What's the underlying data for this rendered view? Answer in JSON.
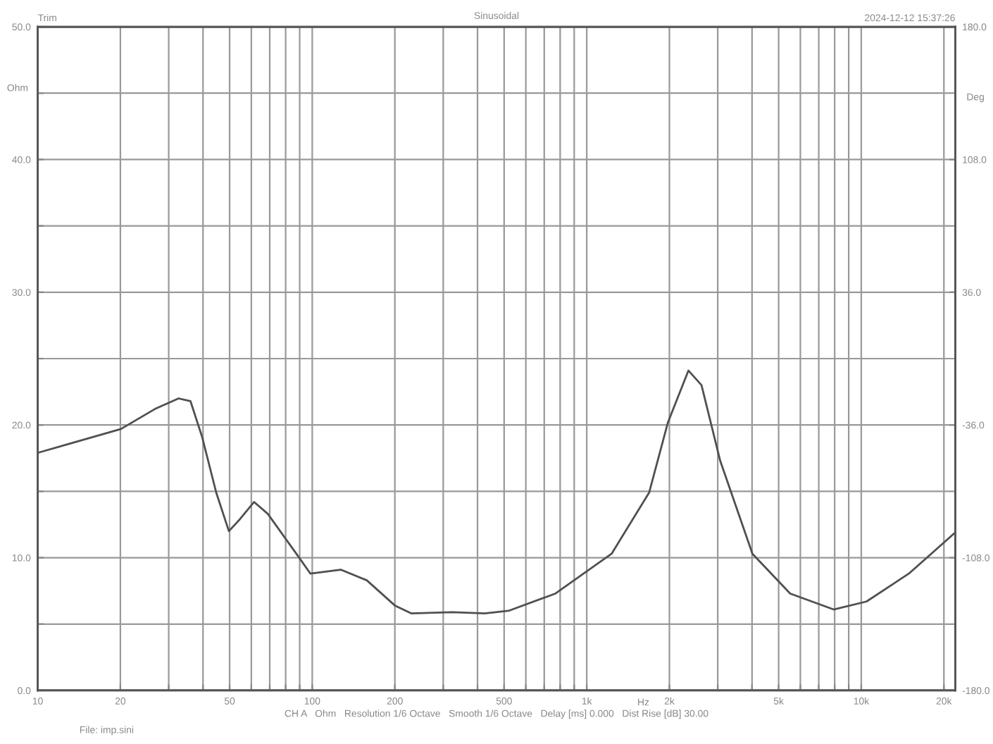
{
  "chart_data": {
    "type": "line",
    "title": "Sinusoidal",
    "xlabel": "Hz",
    "ylabel": "Ohm",
    "y2label": "Deg",
    "annotations": [
      "Trim",
      "2024-12-12 15:37:26",
      "CH A   Ohm   Resolution 1/6 Octave   Smooth 1/6 Octave   Delay [ms] 0.000   Dist Rise [dB] 30.00",
      "File: imp.sini"
    ],
    "log": "x",
    "grid": true,
    "line_style": "solid",
    "marker": "none",
    "xlim": [
      10,
      22000
    ],
    "ylim": [
      0,
      50
    ],
    "y2lim": [
      -180,
      180
    ],
    "xticks": [
      10,
      20,
      {
        "value": 30,
        "label": null
      },
      {
        "value": 40,
        "label": null
      },
      50,
      {
        "value": 60,
        "label": null
      },
      {
        "value": 70,
        "label": null
      },
      {
        "value": 80,
        "label": null
      },
      {
        "value": 90,
        "label": null
      },
      100,
      200,
      {
        "value": 300,
        "label": null
      },
      {
        "value": 400,
        "label": null
      },
      500,
      {
        "value": 600,
        "label": null
      },
      {
        "value": 700,
        "label": null
      },
      {
        "value": 800,
        "label": null
      },
      {
        "value": 900,
        "label": null
      },
      {
        "value": 1000,
        "label": "1k"
      },
      {
        "value": 2000,
        "label": "2k"
      },
      {
        "value": 3000,
        "label": null
      },
      {
        "value": 4000,
        "label": null
      },
      {
        "value": 5000,
        "label": "5k"
      },
      {
        "value": 6000,
        "label": null
      },
      {
        "value": 7000,
        "label": null
      },
      {
        "value": 8000,
        "label": null
      },
      {
        "value": 9000,
        "label": null
      },
      {
        "value": 10000,
        "label": "10k"
      },
      {
        "value": 20000,
        "label": "20k"
      }
    ],
    "yticks": [
      {
        "value": 0,
        "label": "0.0"
      },
      {
        "value": 5,
        "label": null
      },
      {
        "value": 10,
        "label": "10.0"
      },
      {
        "value": 15,
        "label": null
      },
      {
        "value": 20,
        "label": "20.0"
      },
      {
        "value": 25,
        "label": null
      },
      {
        "value": 30,
        "label": "30.0"
      },
      {
        "value": 35,
        "label": null
      },
      {
        "value": 40,
        "label": "40.0"
      },
      {
        "value": 45,
        "label": null
      },
      {
        "value": 50,
        "label": "50.0"
      }
    ],
    "y2ticks": [
      {
        "value": -180,
        "label": "-180.0"
      },
      {
        "value": -108,
        "label": "-108.0"
      },
      {
        "value": -36,
        "label": "-36.0"
      },
      {
        "value": 36,
        "label": "36.0"
      },
      {
        "value": 108,
        "label": "108.0"
      },
      {
        "value": 180,
        "label": "180.0"
      }
    ],
    "series": [
      {
        "color": "#505050",
        "x": [
          10,
          13.1,
          20.1,
          26.7,
          32.6,
          36,
          39.7,
          44.7,
          49.7,
          54.5,
          61.4,
          68.9,
          87.5,
          98.5,
          127,
          158,
          200,
          230,
          323,
          425,
          519,
          769,
          1232,
          1687,
          1976,
          2346,
          2618,
          3063,
          4013,
          5510,
          7930,
          10450,
          14900,
          22000
        ],
        "values": [
          17.9,
          18.6,
          19.7,
          21.2,
          22.0,
          21.8,
          19.1,
          14.9,
          12.0,
          12.9,
          14.2,
          13.3,
          10.3,
          8.8,
          9.1,
          8.3,
          6.4,
          5.8,
          5.9,
          5.8,
          6.0,
          7.3,
          10.3,
          14.9,
          20.2,
          24.1,
          23.0,
          17.3,
          10.3,
          7.3,
          6.1,
          6.7,
          8.8,
          11.9
        ]
      }
    ]
  }
}
